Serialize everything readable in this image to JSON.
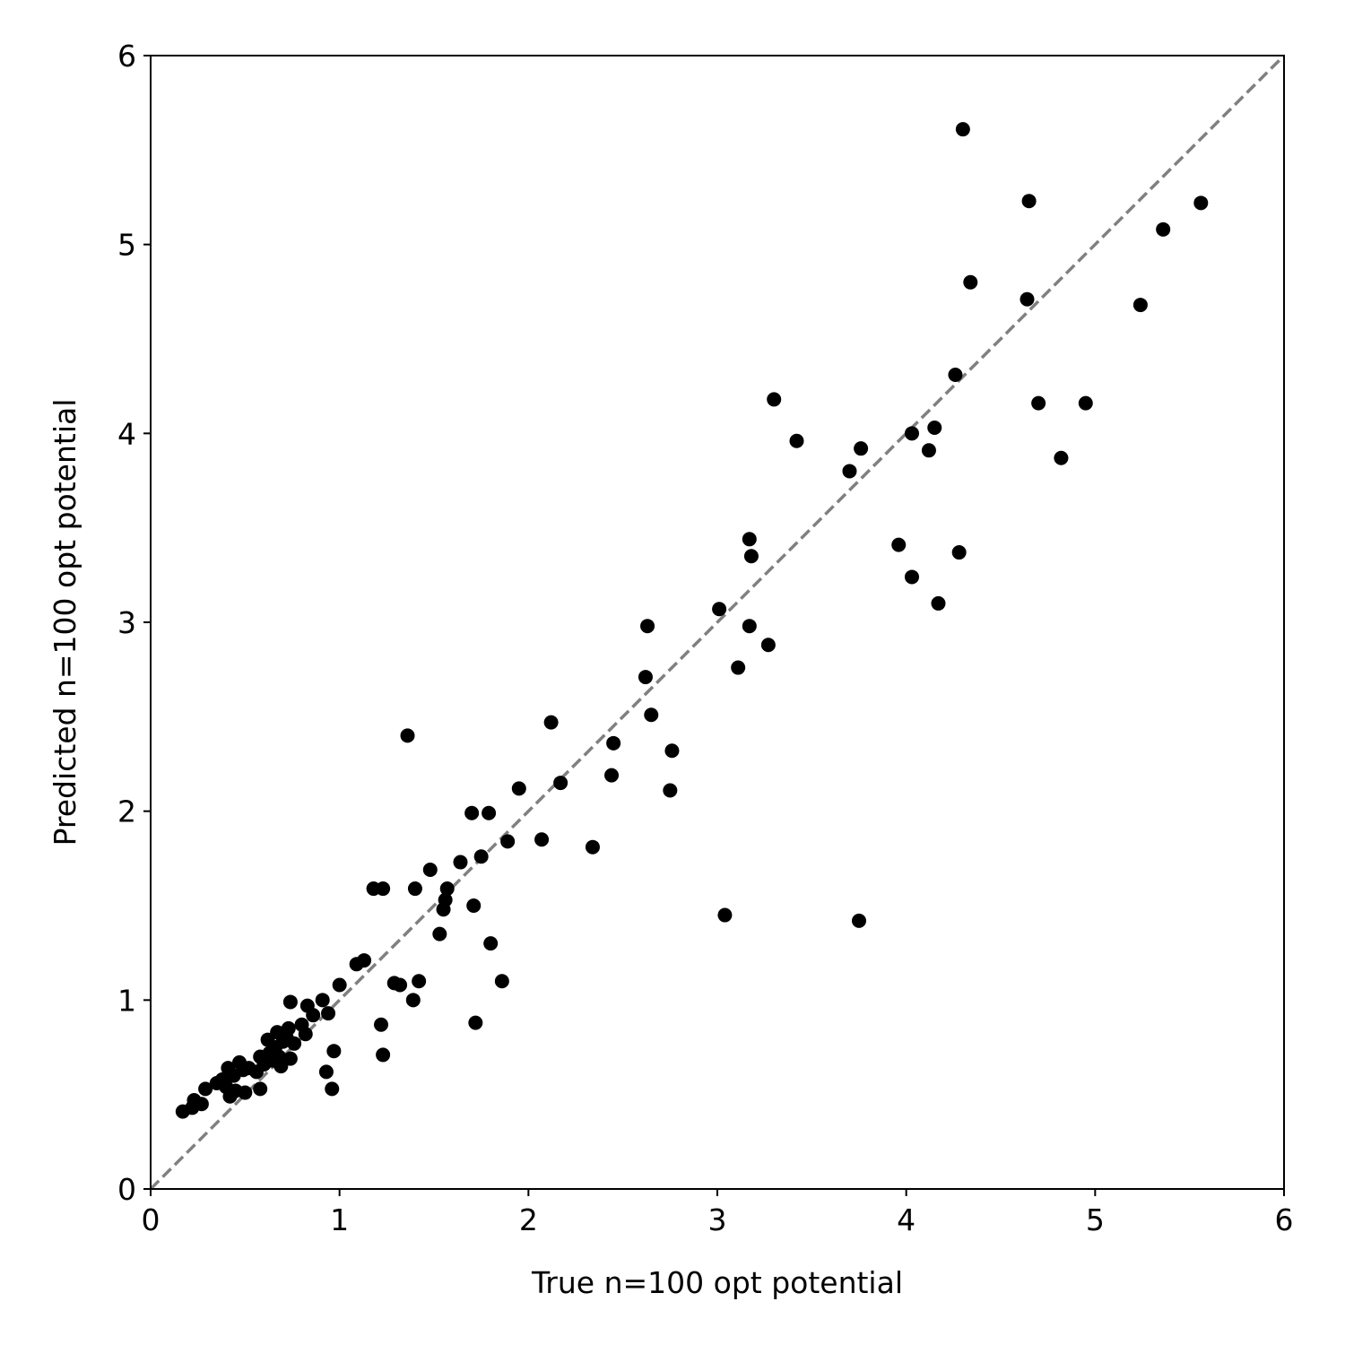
{
  "chart_data": {
    "type": "scatter",
    "title": "",
    "xlabel": "True n=100 opt potential",
    "ylabel": "Predicted n=100 opt potential",
    "xlim": [
      0,
      6
    ],
    "ylim": [
      0,
      6
    ],
    "xticks": [
      "0",
      "1",
      "2",
      "3",
      "4",
      "5",
      "6"
    ],
    "yticks": [
      "0",
      "1",
      "2",
      "3",
      "4",
      "5",
      "6"
    ],
    "grid": false,
    "legend": "none",
    "reference_line": {
      "x": [
        0,
        6
      ],
      "y": [
        0,
        6
      ],
      "style": "dashed",
      "color": "#808080"
    },
    "marker_color": "#000000",
    "series": [
      {
        "points": [
          [
            0.17,
            0.41
          ],
          [
            0.22,
            0.43
          ],
          [
            0.23,
            0.47
          ],
          [
            0.27,
            0.45
          ],
          [
            0.29,
            0.53
          ],
          [
            0.35,
            0.56
          ],
          [
            0.38,
            0.58
          ],
          [
            0.4,
            0.54
          ],
          [
            0.41,
            0.64
          ],
          [
            0.42,
            0.49
          ],
          [
            0.44,
            0.6
          ],
          [
            0.45,
            0.52
          ],
          [
            0.47,
            0.67
          ],
          [
            0.49,
            0.63
          ],
          [
            0.5,
            0.51
          ],
          [
            0.52,
            0.64
          ],
          [
            0.56,
            0.62
          ],
          [
            0.58,
            0.53
          ],
          [
            0.58,
            0.7
          ],
          [
            0.6,
            0.66
          ],
          [
            0.62,
            0.79
          ],
          [
            0.63,
            0.72
          ],
          [
            0.65,
            0.68
          ],
          [
            0.66,
            0.75
          ],
          [
            0.67,
            0.83
          ],
          [
            0.68,
            0.7
          ],
          [
            0.69,
            0.65
          ],
          [
            0.7,
            0.78
          ],
          [
            0.72,
            0.8
          ],
          [
            0.73,
            0.85
          ],
          [
            0.74,
            0.69
          ],
          [
            0.74,
            0.99
          ],
          [
            0.76,
            0.77
          ],
          [
            0.8,
            0.87
          ],
          [
            0.82,
            0.82
          ],
          [
            0.83,
            0.97
          ],
          [
            0.86,
            0.92
          ],
          [
            0.91,
            1.0
          ],
          [
            0.93,
            0.62
          ],
          [
            0.94,
            0.93
          ],
          [
            0.96,
            0.53
          ],
          [
            0.97,
            0.73
          ],
          [
            1.0,
            1.08
          ],
          [
            1.09,
            1.19
          ],
          [
            1.13,
            1.21
          ],
          [
            1.18,
            1.59
          ],
          [
            1.22,
            0.87
          ],
          [
            1.23,
            1.59
          ],
          [
            1.23,
            0.71
          ],
          [
            1.29,
            1.09
          ],
          [
            1.32,
            1.08
          ],
          [
            1.36,
            2.4
          ],
          [
            1.39,
            1.0
          ],
          [
            1.4,
            1.59
          ],
          [
            1.42,
            1.1
          ],
          [
            1.48,
            1.69
          ],
          [
            1.53,
            1.35
          ],
          [
            1.55,
            1.48
          ],
          [
            1.56,
            1.53
          ],
          [
            1.57,
            1.59
          ],
          [
            1.64,
            1.73
          ],
          [
            1.7,
            1.99
          ],
          [
            1.71,
            1.5
          ],
          [
            1.72,
            0.88
          ],
          [
            1.75,
            1.76
          ],
          [
            1.79,
            1.99
          ],
          [
            1.8,
            1.3
          ],
          [
            1.86,
            1.1
          ],
          [
            1.89,
            1.84
          ],
          [
            1.95,
            2.12
          ],
          [
            2.07,
            1.85
          ],
          [
            2.12,
            2.47
          ],
          [
            2.17,
            2.15
          ],
          [
            2.34,
            1.81
          ],
          [
            2.44,
            2.19
          ],
          [
            2.45,
            2.36
          ],
          [
            2.62,
            2.71
          ],
          [
            2.63,
            2.98
          ],
          [
            2.65,
            2.51
          ],
          [
            2.75,
            2.11
          ],
          [
            2.76,
            2.32
          ],
          [
            3.01,
            3.07
          ],
          [
            3.04,
            1.45
          ],
          [
            3.11,
            2.76
          ],
          [
            3.17,
            3.44
          ],
          [
            3.17,
            2.98
          ],
          [
            3.18,
            3.35
          ],
          [
            3.27,
            2.88
          ],
          [
            3.3,
            4.18
          ],
          [
            3.42,
            3.96
          ],
          [
            3.7,
            3.8
          ],
          [
            3.75,
            1.42
          ],
          [
            3.76,
            3.92
          ],
          [
            3.96,
            3.41
          ],
          [
            4.03,
            3.24
          ],
          [
            4.03,
            4.0
          ],
          [
            4.12,
            3.91
          ],
          [
            4.15,
            4.03
          ],
          [
            4.17,
            3.1
          ],
          [
            4.26,
            4.31
          ],
          [
            4.28,
            3.37
          ],
          [
            4.3,
            5.61
          ],
          [
            4.34,
            4.8
          ],
          [
            4.64,
            4.71
          ],
          [
            4.65,
            5.23
          ],
          [
            4.7,
            4.16
          ],
          [
            4.82,
            3.87
          ],
          [
            4.95,
            4.16
          ],
          [
            5.24,
            4.68
          ],
          [
            5.36,
            5.08
          ],
          [
            5.56,
            5.22
          ]
        ]
      }
    ]
  }
}
